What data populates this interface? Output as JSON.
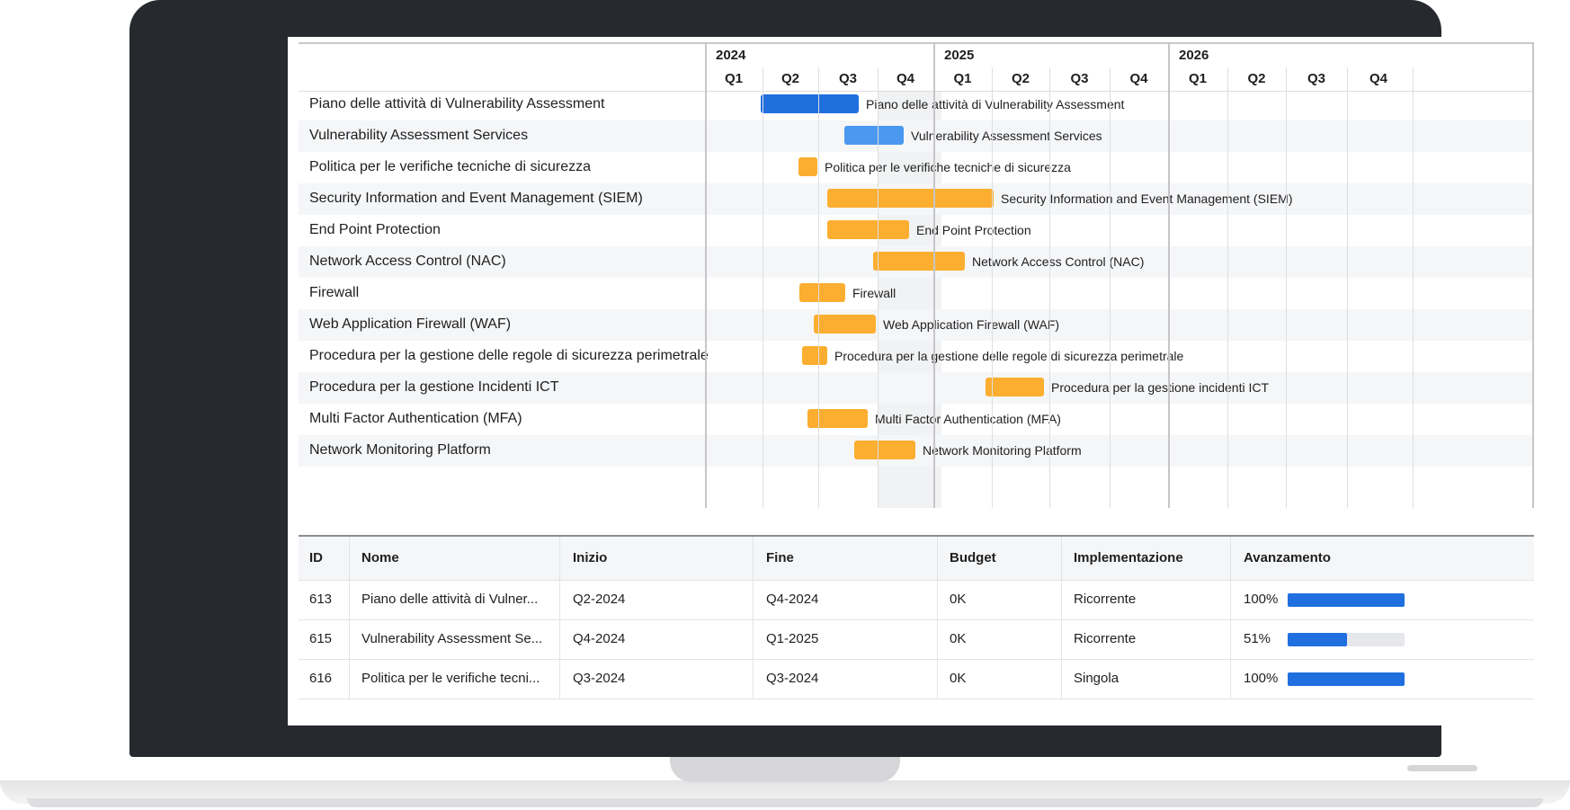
{
  "colors": {
    "dark_blue": "#1f6fde",
    "light_blue": "#4a98ef",
    "orange": "#fbae30",
    "progress": "#1f6fde"
  },
  "timeline": {
    "years": [
      {
        "label": "2024",
        "quarters": [
          "Q1",
          "Q2",
          "Q3",
          "Q4"
        ]
      },
      {
        "label": "2025",
        "quarters": [
          "Q1",
          "Q2",
          "Q3",
          "Q4"
        ]
      },
      {
        "label": "2026",
        "quarters": [
          "Q1",
          "Q2",
          "Q3",
          "Q4"
        ]
      }
    ]
  },
  "tasks": [
    {
      "label": "Piano delle attività di Vulnerability Assessment",
      "bar_label": "Piano delle attività di Vulnerability Assessment",
      "color": "dark_blue"
    },
    {
      "label": "Vulnerability Assessment Services",
      "bar_label": "Vulnerability Assessment Services",
      "color": "light_blue"
    },
    {
      "label": "Politica per le verifiche tecniche di sicurezza",
      "bar_label": "Politica per le verifiche tecniche di sicurezza",
      "color": "orange"
    },
    {
      "label": "Security Information and Event Management (SIEM)",
      "bar_label": "Security Information and Event Management (SIEM)",
      "color": "orange"
    },
    {
      "label": "End Point Protection",
      "bar_label": "End Point Protection",
      "color": "orange"
    },
    {
      "label": "Network Access Control (NAC)",
      "bar_label": "Network Access Control (NAC)",
      "color": "orange"
    },
    {
      "label": "Firewall",
      "bar_label": "Firewall",
      "color": "orange"
    },
    {
      "label": "Web Application Firewall (WAF)",
      "bar_label": "Web Application Firewall (WAF)",
      "color": "orange"
    },
    {
      "label": "Procedura per la gestione delle regole di sicurezza perimetrale",
      "bar_label": "Procedura per la gestione delle regole di sicurezza perimetrale",
      "color": "orange"
    },
    {
      "label": "Procedura per la gestione Incidenti ICT",
      "bar_label": "Procedura per la gestione incidenti ICT",
      "color": "orange"
    },
    {
      "label": "Multi Factor Authentication (MFA)",
      "bar_label": "Multi Factor Authentication (MFA)",
      "color": "orange"
    },
    {
      "label": "Network Monitoring Platform",
      "bar_label": "Network Monitoring Platform",
      "color": "orange"
    }
  ],
  "table": {
    "headers": {
      "id": "ID",
      "nome": "Nome",
      "inizio": "Inizio",
      "fine": "Fine",
      "budget": "Budget",
      "implementazione": "Implementazione",
      "avanzamento": "Avanzamento"
    },
    "rows": [
      {
        "id": "613",
        "nome": "Piano delle attività di Vulner...",
        "inizio": "Q2-2024",
        "fine": "Q4-2024",
        "budget": "0K",
        "implementazione": "Ricorrente",
        "avanzamento": "100%",
        "progress": 1.0
      },
      {
        "id": "615",
        "nome": "Vulnerability Assessment Se...",
        "inizio": "Q4-2024",
        "fine": "Q1-2025",
        "budget": "0K",
        "implementazione": "Ricorrente",
        "avanzamento": "51%",
        "progress": 0.51
      },
      {
        "id": "616",
        "nome": "Politica per le verifiche tecni...",
        "inizio": "Q3-2024",
        "fine": "Q3-2024",
        "budget": "0K",
        "implementazione": "Singola",
        "avanzamento": "100%",
        "progress": 1.0
      }
    ]
  }
}
